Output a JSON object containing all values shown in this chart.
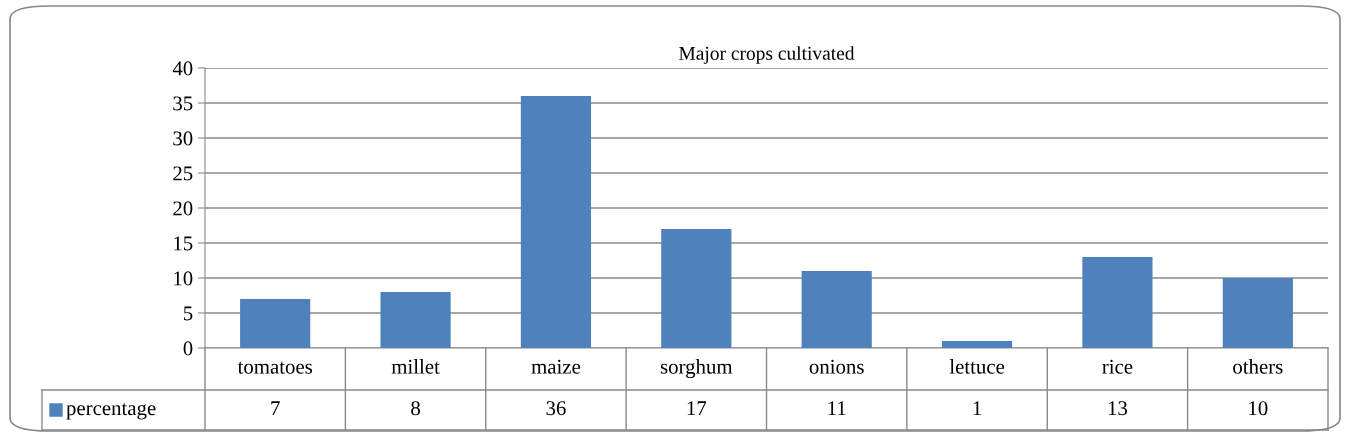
{
  "chart_data": {
    "type": "bar",
    "title": "Major crops cultivated",
    "categories": [
      "tomatoes",
      "millet",
      "maize",
      "sorghum",
      "onions",
      "lettuce",
      "rice",
      "others"
    ],
    "series": [
      {
        "name": "percentage",
        "color": "#4f81bd",
        "values": [
          7,
          8,
          36,
          17,
          11,
          1,
          13,
          10
        ]
      }
    ],
    "ylim": [
      0,
      40
    ],
    "yticks": [
      0,
      5,
      10,
      15,
      20,
      25,
      30,
      35,
      40
    ],
    "grid": "y",
    "legend": "bottom",
    "data_labels": true
  }
}
